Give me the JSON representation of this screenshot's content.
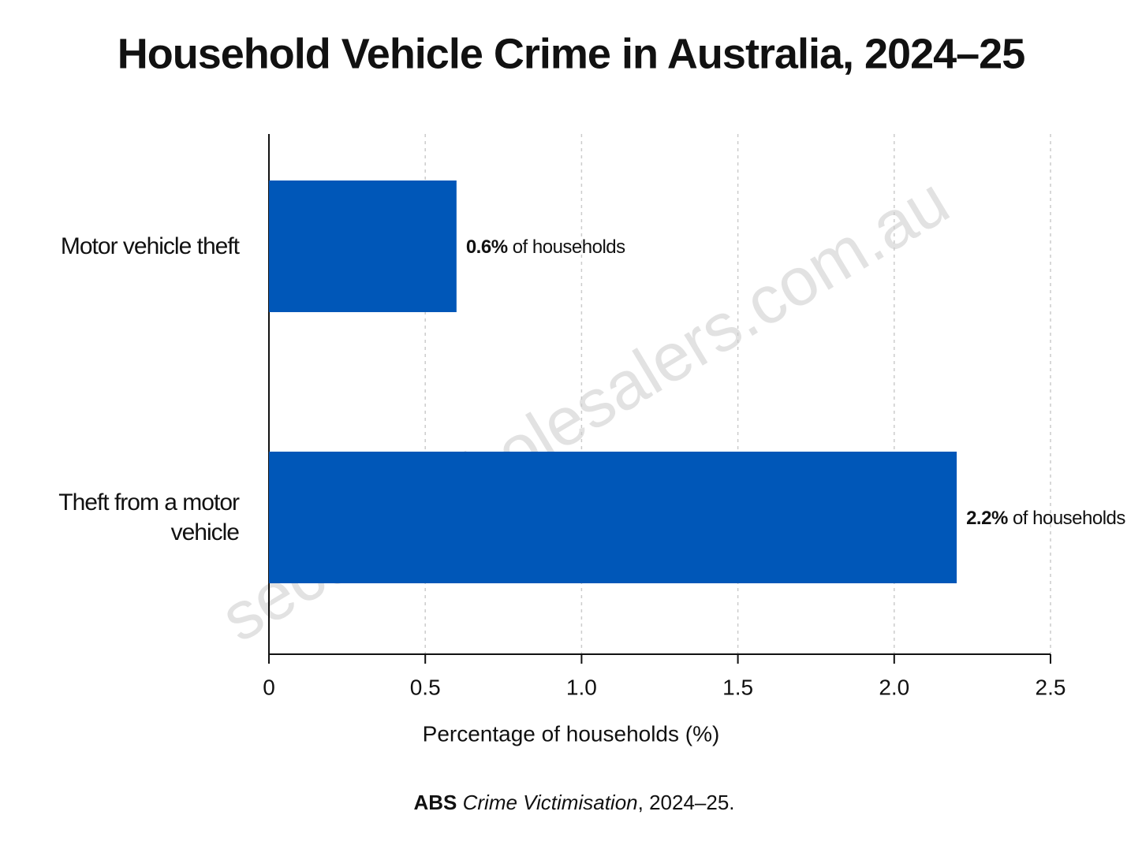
{
  "chart_data": {
    "type": "bar",
    "orientation": "horizontal",
    "title": "Household Vehicle Crime in Australia, 2024–25",
    "categories": [
      "Motor vehicle theft",
      "Theft from a motor vehicle"
    ],
    "values": [
      0.6,
      2.2
    ],
    "value_labels": [
      "0.6%",
      "2.2%"
    ],
    "value_label_suffix": "of households",
    "color": "#0057b8",
    "xlabel": "Percentage of households (%)",
    "xlim": [
      0,
      2.5
    ],
    "xticks": [
      0,
      0.5,
      {
        "value": 1,
        "label": "1.0"
      },
      1.5,
      {
        "value": 2,
        "label": "2.0"
      },
      2.5
    ],
    "grid": true,
    "source": {
      "publisher": "ABS",
      "title": "Crime Victimisation",
      "suffix": ", 2024–25."
    },
    "watermark": "securitywholesalers.com.au"
  }
}
